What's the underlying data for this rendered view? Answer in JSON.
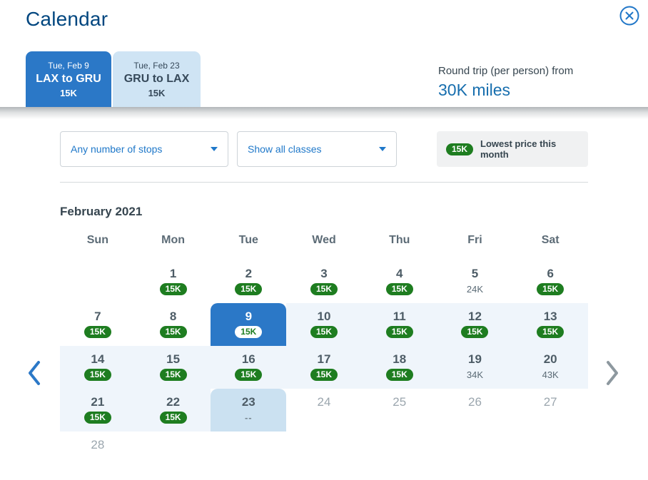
{
  "header": {
    "title": "Calendar"
  },
  "tabs": [
    {
      "date": "Tue, Feb 9",
      "route": "LAX to GRU",
      "price": "15K",
      "selected": true
    },
    {
      "date": "Tue, Feb 23",
      "route": "GRU to LAX",
      "price": "15K",
      "selected": false
    }
  ],
  "summary": {
    "label": "Round trip (per person) from",
    "value": "30K miles"
  },
  "filters": {
    "stops": "Any number of stops",
    "classes": "Show all classes"
  },
  "legend": {
    "badge": "15K",
    "label": "Lowest price this month"
  },
  "calendar": {
    "month_title": "February 2021",
    "weekday_headers": [
      "Sun",
      "Mon",
      "Tue",
      "Wed",
      "Thu",
      "Fri",
      "Sat"
    ],
    "weeks": [
      [
        null,
        {
          "day": "1",
          "price": "15K",
          "style": "badge",
          "state": "normal"
        },
        {
          "day": "2",
          "price": "15K",
          "style": "badge",
          "state": "normal"
        },
        {
          "day": "3",
          "price": "15K",
          "style": "badge",
          "state": "normal"
        },
        {
          "day": "4",
          "price": "15K",
          "style": "badge",
          "state": "normal"
        },
        {
          "day": "5",
          "price": "24K",
          "style": "plain",
          "state": "normal"
        },
        {
          "day": "6",
          "price": "15K",
          "style": "badge",
          "state": "normal"
        }
      ],
      [
        {
          "day": "7",
          "price": "15K",
          "style": "badge",
          "state": "normal"
        },
        {
          "day": "8",
          "price": "15K",
          "style": "badge",
          "state": "normal"
        },
        {
          "day": "9",
          "price": "15K",
          "style": "badge",
          "state": "selected"
        },
        {
          "day": "10",
          "price": "15K",
          "style": "badge",
          "state": "range"
        },
        {
          "day": "11",
          "price": "15K",
          "style": "badge",
          "state": "range"
        },
        {
          "day": "12",
          "price": "15K",
          "style": "badge",
          "state": "range"
        },
        {
          "day": "13",
          "price": "15K",
          "style": "badge",
          "state": "range"
        }
      ],
      [
        {
          "day": "14",
          "price": "15K",
          "style": "badge",
          "state": "range"
        },
        {
          "day": "15",
          "price": "15K",
          "style": "badge",
          "state": "range"
        },
        {
          "day": "16",
          "price": "15K",
          "style": "badge",
          "state": "range"
        },
        {
          "day": "17",
          "price": "15K",
          "style": "badge",
          "state": "range"
        },
        {
          "day": "18",
          "price": "15K",
          "style": "badge",
          "state": "range"
        },
        {
          "day": "19",
          "price": "34K",
          "style": "plain",
          "state": "range"
        },
        {
          "day": "20",
          "price": "43K",
          "style": "plain",
          "state": "range"
        }
      ],
      [
        {
          "day": "21",
          "price": "15K",
          "style": "badge",
          "state": "range"
        },
        {
          "day": "22",
          "price": "15K",
          "style": "badge",
          "state": "range"
        },
        {
          "day": "23",
          "price": "--",
          "style": "plain",
          "state": "return"
        },
        {
          "day": "24",
          "price": null,
          "style": null,
          "state": "muted"
        },
        {
          "day": "25",
          "price": null,
          "style": null,
          "state": "muted"
        },
        {
          "day": "26",
          "price": null,
          "style": null,
          "state": "muted"
        },
        {
          "day": "27",
          "price": null,
          "style": null,
          "state": "muted"
        }
      ],
      [
        {
          "day": "28",
          "price": null,
          "style": null,
          "state": "muted"
        },
        null,
        null,
        null,
        null,
        null,
        null
      ]
    ]
  },
  "colors": {
    "title_navy": "#00467f",
    "selected_blue": "#2b78c7",
    "tab_light_blue": "#cfe4f4",
    "range_blue": "#eff5fb",
    "return_blue": "#cbe1f1",
    "badge_green": "#1e7d20",
    "link_blue": "#1f78c9",
    "miles_blue": "#176eae"
  }
}
